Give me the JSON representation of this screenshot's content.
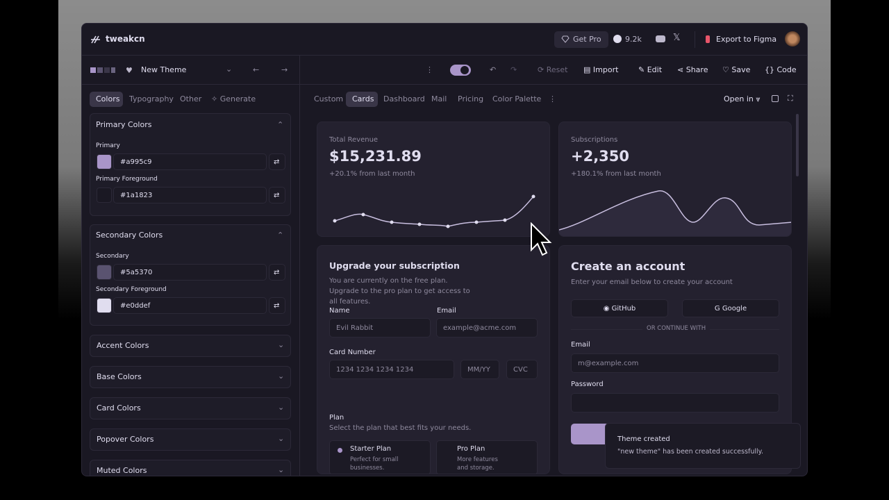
{
  "header": {
    "brand": "tweakcn",
    "get_pro": "Get Pro",
    "stars": "9.2k",
    "export": "Export to Figma"
  },
  "toolbar": {
    "theme_name": "New Theme",
    "reset": "Reset",
    "import": "Import",
    "edit": "Edit",
    "share": "Share",
    "save": "Save",
    "code": "Code"
  },
  "sidebar": {
    "tabs": [
      "Colors",
      "Typography",
      "Other",
      "Generate"
    ],
    "sections": [
      {
        "title": "Primary Colors",
        "fields": [
          {
            "label": "Primary",
            "value": "#a995c9"
          },
          {
            "label": "Primary Foreground",
            "value": "#1a1823"
          }
        ]
      },
      {
        "title": "Secondary Colors",
        "fields": [
          {
            "label": "Secondary",
            "value": "#5a5370"
          },
          {
            "label": "Secondary Foreground",
            "value": "#e0ddef"
          }
        ]
      }
    ],
    "collapsed": [
      "Accent Colors",
      "Base Colors",
      "Card Colors",
      "Popover Colors",
      "Muted Colors"
    ]
  },
  "preview": {
    "tabs": [
      "Custom",
      "Cards",
      "Dashboard",
      "Mail",
      "Pricing",
      "Color Palette"
    ],
    "open_in": "Open in",
    "revenue": {
      "label": "Total Revenue",
      "value": "$15,231.89",
      "change": "+20.1% from last month"
    },
    "subscriptions": {
      "label": "Subscriptions",
      "value": "+2,350",
      "change": "+180.1% from last month"
    },
    "upgrade": {
      "title": "Upgrade your subscription",
      "description": "You are currently on the free plan. Upgrade to the pro plan to get access to all features.",
      "name_label": "Name",
      "name_placeholder": "Evil Rabbit",
      "email_label": "Email",
      "email_placeholder": "example@acme.com",
      "card_label": "Card Number",
      "card_placeholder": "1234 1234 1234 1234",
      "expiry_placeholder": "MM/YY",
      "cvc_placeholder": "CVC",
      "plan_label": "Plan",
      "plan_description": "Select the plan that best fits your needs.",
      "plans": [
        {
          "name": "Starter Plan",
          "description": "Perfect for small businesses."
        },
        {
          "name": "Pro Plan",
          "description": "More features and storage."
        }
      ]
    },
    "account": {
      "title": "Create an account",
      "description": "Enter your email below to create your account",
      "github": "GitHub",
      "google": "Google",
      "divider": "OR CONTINUE WITH",
      "email_label": "Email",
      "email_placeholder": "m@example.com",
      "password_label": "Password"
    }
  },
  "toast": {
    "title": "Theme created",
    "message": "\"new theme\" has been created successfully."
  }
}
